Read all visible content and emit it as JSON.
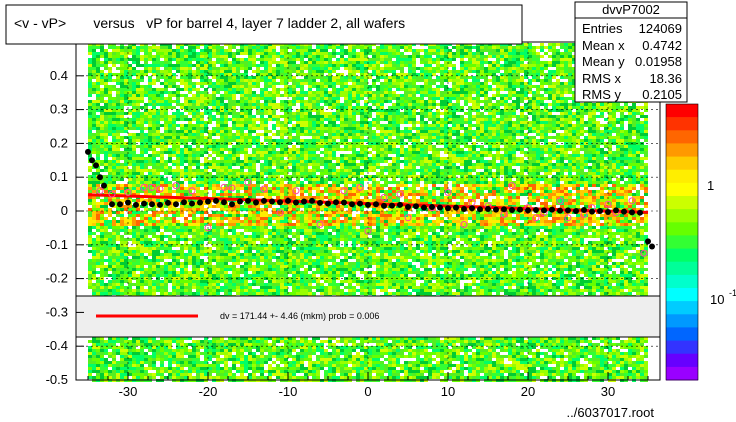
{
  "chart_data": {
    "type": "scatter",
    "title": "<v - vP>       versus   vP for barrel 4, layer 7 ladder 2, all wafers",
    "xlabel": "",
    "ylabel": "",
    "xlim": [
      -36.5,
      36.5
    ],
    "ylim": [
      -0.5,
      0.5
    ],
    "xticks": [
      "-30",
      "-20",
      "-10",
      "0",
      "10",
      "20",
      "30"
    ],
    "xtick_values": [
      -30,
      -20,
      -10,
      0,
      10,
      20,
      30
    ],
    "yticks": [
      "0.4",
      "0.3",
      "0.2",
      "0.1",
      "0",
      "-0.1",
      "-0.2",
      "-0.3",
      "-0.4",
      "-0.5"
    ],
    "ytick_values": [
      0.4,
      0.3,
      0.2,
      0.1,
      0,
      -0.1,
      -0.2,
      -0.3,
      -0.4,
      -0.5
    ],
    "grid": true,
    "stats": {
      "name": "dvvP7002",
      "rows": [
        {
          "label": "Entries",
          "value": "124069"
        },
        {
          "label": "Mean x",
          "value": "0.4742"
        },
        {
          "label": "Mean y",
          "value": "0.01958"
        },
        {
          "label": "RMS x",
          "value": "18.36"
        },
        {
          "label": "RMS y",
          "value": "0.2105"
        }
      ]
    },
    "colorbar": {
      "labels": [
        "1",
        "10"
      ],
      "label_exponent": "-1"
    },
    "fit_legend": {
      "text": "dv =  171.44 +-  4.46 (mkm) prob = 0.006",
      "color": "#ff0000"
    },
    "fit_line": {
      "x": [
        -35,
        35
      ],
      "y": [
        0.048,
        -0.004
      ]
    },
    "profile_series": {
      "name": "mean profile",
      "color": "#000000",
      "x": [
        -35.0,
        -34.5,
        -34.0,
        -33.5,
        -33.0,
        -32.0,
        -31.0,
        -30.0,
        -29.0,
        -28.0,
        -27.0,
        -26.0,
        -25.0,
        -24.0,
        -23.0,
        -22.0,
        -21.0,
        -20.0,
        -19.0,
        -18.0,
        -17.0,
        -16.0,
        -15.0,
        -14.0,
        -13.0,
        -12.0,
        -11.0,
        -10.0,
        -9.0,
        -8.0,
        -7.0,
        -6.0,
        -5.0,
        -4.0,
        -3.0,
        -2.0,
        -1.0,
        0.0,
        1.0,
        2.0,
        3.0,
        4.0,
        5.0,
        6.0,
        7.0,
        8.0,
        9.0,
        10.0,
        11.0,
        12.0,
        13.0,
        14.0,
        15.0,
        16.0,
        17.0,
        18.0,
        19.0,
        20.0,
        21.0,
        22.0,
        23.0,
        24.0,
        25.0,
        26.0,
        27.0,
        28.0,
        29.0,
        30.0,
        31.0,
        32.0,
        33.0,
        34.0,
        35.0,
        35.5
      ],
      "y": [
        0.175,
        0.15,
        0.135,
        0.1,
        0.075,
        0.02,
        0.02,
        0.025,
        0.018,
        0.022,
        0.02,
        0.018,
        0.024,
        0.02,
        0.026,
        0.022,
        0.025,
        0.028,
        0.03,
        0.026,
        0.02,
        0.028,
        0.03,
        0.025,
        0.03,
        0.028,
        0.026,
        0.03,
        0.025,
        0.028,
        0.03,
        0.024,
        0.022,
        0.026,
        0.025,
        0.02,
        0.022,
        0.018,
        0.02,
        0.015,
        0.016,
        0.018,
        0.012,
        0.014,
        0.01,
        0.012,
        0.01,
        0.008,
        0.01,
        0.006,
        0.008,
        0.005,
        0.006,
        0.004,
        0.005,
        0.003,
        0.004,
        0.002,
        0.003,
        0.002,
        0.004,
        0.001,
        0.002,
        0.0,
        0.003,
        -0.002,
        0.0,
        -0.003,
        0.002,
        -0.002,
        -0.004,
        -0.005,
        -0.09,
        -0.105
      ]
    },
    "outlier_series": {
      "name": "open markers",
      "color": "#ff44aa",
      "x": [
        -33.5,
        -32.0,
        -30.0,
        -28.0,
        -27.0,
        -26.0,
        -24.0,
        -22.0,
        -20.0,
        -18.0,
        -17.0,
        -15.0,
        -13.0,
        -11.0,
        -9.0,
        -6.0,
        -3.0,
        -1.0,
        0.0,
        2.0,
        4.0,
        5.0,
        8.0,
        10.0,
        12.0,
        13.0,
        15.0,
        17.0,
        18.0,
        20.0,
        21.0,
        22.0,
        24.0,
        25.0,
        27.0,
        28.0,
        30.0,
        31.0,
        33.0,
        34.5
      ],
      "y": [
        0.06,
        0.05,
        0.055,
        0.07,
        0.07,
        0.065,
        0.075,
        0.06,
        -0.05,
        0.07,
        0.068,
        0.085,
        0.065,
        -0.005,
        0.06,
        -0.04,
        0.06,
        0.07,
        -0.06,
        0.04,
        0.05,
        -0.02,
        0.01,
        0.055,
        -0.04,
        0.025,
        0.015,
        -0.01,
        0.075,
        0.01,
        -0.02,
        -0.005,
        0.03,
        -0.02,
        -0.01,
        0.01,
        0.02,
        -0.005,
        0.03,
        -0.125
      ]
    }
  },
  "footer": {
    "filename": "../6037017.root"
  },
  "colors": {
    "fit": "#ff0000",
    "profile": "#000000",
    "markers": "#ff44aa"
  }
}
